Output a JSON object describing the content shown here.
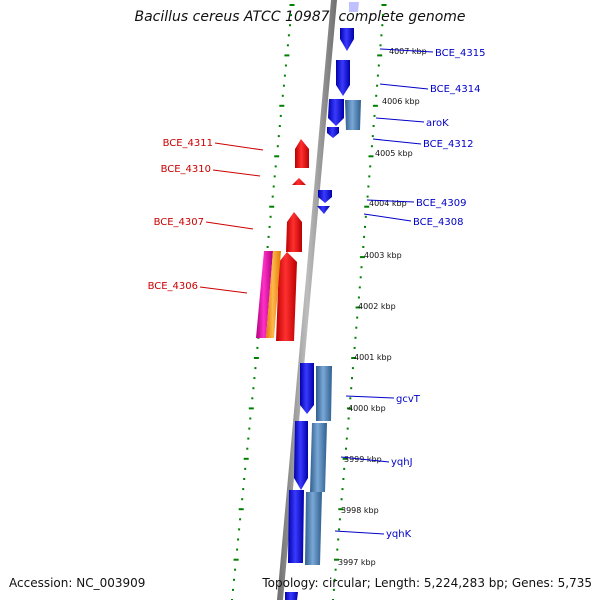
{
  "title": "Bacillus cereus ATCC 10987, complete genome",
  "footer": {
    "accession": "Accession: NC_003909",
    "summary": "Topology: circular; Length: 5,224,283 bp; Genes: 5,735"
  },
  "colors": {
    "forward_gene": "#0000ee",
    "forward_gene_alt": "#4682b4",
    "reverse_gene": "#ee0000",
    "magenta_gene": "#e000a0",
    "orange_gene": "#ff9900",
    "ticks": "#008000",
    "backbone": "#808080"
  },
  "tick_labels": [
    "4007 kbp",
    "4006 kbp",
    "4005 kbp",
    "4004 kbp",
    "4003 kbp",
    "4002 kbp",
    "4001 kbp",
    "4000 kbp",
    "3999 kbp",
    "3998 kbp",
    "3997 kbp"
  ],
  "labels_right": [
    "BCE_4315",
    "BCE_4314",
    "aroK",
    "BCE_4312",
    "BCE_4309",
    "BCE_4308",
    "gcvT",
    "yqhJ",
    "yqhK"
  ],
  "labels_left": [
    "BCE_4311",
    "BCE_4310",
    "BCE_4307",
    "BCE_4306"
  ]
}
